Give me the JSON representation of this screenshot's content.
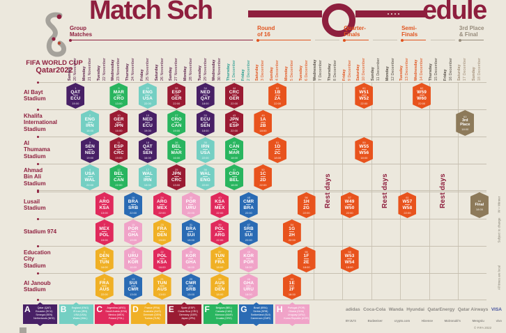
{
  "title": {
    "part1": "Match Sch",
    "part2": "edule"
  },
  "logo": {
    "line1": "FIFA WORLD CUP",
    "line2": "Qatar2022"
  },
  "colors": {
    "bg": "#ece8dd",
    "accent": "#8e1f3e",
    "orange": "#e0531e",
    "tan": "#968b7b",
    "line": "#c9c2b4",
    "group_date": "#5b2149",
    "groupend_date": "#239a8d",
    "rest_date": "#564f47",
    "final_date": "#a3907a",
    "groups": {
      "A": "#482066",
      "B": "#74cfc3",
      "C": "#e02a5c",
      "D": "#f0b025",
      "E": "#9a1b33",
      "F": "#29b55f",
      "G": "#2a6bb4",
      "H": "#f0a3c8",
      "KO": "#e8531d",
      "FINAL": "#8d7a5a"
    }
  },
  "phases": [
    {
      "label": "Group\nMatches",
      "c0": 0,
      "c1": 12,
      "color": "#8e1f3e"
    },
    {
      "label": "Round\nof 16",
      "c0": 13,
      "c1": 16,
      "color": "#e0531e"
    },
    {
      "label": "Quarter-\nFinals",
      "c0": 19,
      "c1": 20,
      "color": "#e0531e"
    },
    {
      "label": "Semi-\nFinals",
      "c0": 23,
      "c1": 24,
      "color": "#e0531e"
    },
    {
      "label": "3rd Place\n& Final",
      "c0": 27,
      "c1": 28,
      "color": "#968b7b"
    }
  ],
  "rest_label": "Rest days",
  "rest_zones": [
    {
      "c0": 17,
      "c1": 18
    },
    {
      "c0": 21,
      "c1": 22
    },
    {
      "c0": 25,
      "c1": 26
    }
  ],
  "columns": [
    {
      "day": "Sunday",
      "date": "20 November",
      "type": "group"
    },
    {
      "day": "Monday",
      "date": "21 November",
      "type": "group"
    },
    {
      "day": "Tuesday",
      "date": "22 November",
      "type": "group"
    },
    {
      "day": "Wednesday",
      "date": "23 November",
      "type": "group"
    },
    {
      "day": "Thursday",
      "date": "24 November",
      "type": "group"
    },
    {
      "day": "Friday",
      "date": "25 November",
      "type": "group"
    },
    {
      "day": "Saturday",
      "date": "26 November",
      "type": "group"
    },
    {
      "day": "Sunday",
      "date": "27 November",
      "type": "group"
    },
    {
      "day": "Monday",
      "date": "28 November",
      "type": "group"
    },
    {
      "day": "Tuesday",
      "date": "29 November",
      "type": "group"
    },
    {
      "day": "Wednesday",
      "date": "30 November",
      "type": "group"
    },
    {
      "day": "Thursday",
      "date": "1 December",
      "type": "groupend"
    },
    {
      "day": "Friday",
      "date": "2 December",
      "type": "groupend"
    },
    {
      "day": "Saturday",
      "date": "3 December",
      "type": "ko"
    },
    {
      "day": "Sunday",
      "date": "4 December",
      "type": "ko"
    },
    {
      "day": "Monday",
      "date": "5 December",
      "type": "ko"
    },
    {
      "day": "Tuesday",
      "date": "6 December",
      "type": "ko"
    },
    {
      "day": "Wednesday",
      "date": "7 December",
      "type": "rest"
    },
    {
      "day": "Thursday",
      "date": "8 December",
      "type": "rest"
    },
    {
      "day": "Friday",
      "date": "9 December",
      "type": "ko"
    },
    {
      "day": "Saturday",
      "date": "10 December",
      "type": "ko"
    },
    {
      "day": "Sunday",
      "date": "11 December",
      "type": "rest"
    },
    {
      "day": "Monday",
      "date": "12 December",
      "type": "rest"
    },
    {
      "day": "Tuesday",
      "date": "13 December",
      "type": "ko"
    },
    {
      "day": "Wednesday",
      "date": "14 December",
      "type": "ko"
    },
    {
      "day": "Thursday",
      "date": "15 December",
      "type": "rest"
    },
    {
      "day": "Friday",
      "date": "16 December",
      "type": "rest"
    },
    {
      "day": "Saturday",
      "date": "17 December",
      "type": "final"
    },
    {
      "day": "Sunday",
      "date": "18 December",
      "type": "final"
    }
  ],
  "stadiums": [
    {
      "name": "Al Bayt\nStadium",
      "matches": [
        {
          "c": 0,
          "n": "1",
          "a": "QAT",
          "b": "ECU",
          "g": "A",
          "t": "19:00"
        },
        {
          "c": 3,
          "n": "9",
          "a": "MAR",
          "b": "CRO",
          "g": "F",
          "t": "13:00"
        },
        {
          "c": 5,
          "n": "20",
          "a": "ENG",
          "b": "USA",
          "g": "B",
          "t": "22:00"
        },
        {
          "c": 7,
          "n": "28",
          "a": "ESP",
          "b": "GER",
          "g": "E",
          "t": "22:00"
        },
        {
          "c": 9,
          "n": "34",
          "a": "NED",
          "b": "QAT",
          "g": "A",
          "t": "18:00"
        },
        {
          "c": 11,
          "n": "44",
          "a": "CRC",
          "b": "GER",
          "g": "E",
          "t": "22:00"
        },
        {
          "c": 14,
          "n": "52",
          "a": "1B",
          "b": "2A",
          "g": "KO",
          "t": "22:00"
        },
        {
          "c": 20,
          "n": "60",
          "a": "W51",
          "b": "W52",
          "g": "KO",
          "t": "22:00"
        },
        {
          "c": 24,
          "n": "62",
          "a": "W59",
          "b": "W60",
          "g": "KO",
          "t": "22:00"
        }
      ]
    },
    {
      "name": "Khalifa\nInternational\nStadium",
      "matches": [
        {
          "c": 1,
          "n": "2",
          "a": "ENG",
          "b": "IRN",
          "g": "B",
          "t": "16:00"
        },
        {
          "c": 3,
          "n": "10",
          "a": "GER",
          "b": "JPN",
          "g": "E",
          "t": "16:00"
        },
        {
          "c": 5,
          "n": "19",
          "a": "NED",
          "b": "ECU",
          "g": "A",
          "t": "19:00"
        },
        {
          "c": 7,
          "n": "27",
          "a": "CRO",
          "b": "CAN",
          "g": "F",
          "t": "19:00"
        },
        {
          "c": 9,
          "n": "33",
          "a": "ECU",
          "b": "SEN",
          "g": "A",
          "t": "18:00"
        },
        {
          "c": 11,
          "n": "43",
          "a": "JPN",
          "b": "ESP",
          "g": "E",
          "t": "22:00"
        },
        {
          "c": 13,
          "n": "49",
          "a": "1A",
          "b": "2B",
          "g": "KO",
          "t": "18:00"
        },
        {
          "c": 27,
          "n": "63",
          "lines": "3rd\nPlace",
          "g": "FINAL",
          "t": "18:00"
        }
      ]
    },
    {
      "name": "Al\nThumama\nStadium",
      "matches": [
        {
          "c": 1,
          "n": "3",
          "a": "SEN",
          "b": "NED",
          "g": "A",
          "t": "19:00"
        },
        {
          "c": 3,
          "n": "11",
          "a": "ESP",
          "b": "CRC",
          "g": "E",
          "t": "19:00"
        },
        {
          "c": 5,
          "n": "18",
          "a": "QAT",
          "b": "SEN",
          "g": "A",
          "t": "16:00"
        },
        {
          "c": 7,
          "n": "26",
          "a": "BEL",
          "b": "MAR",
          "g": "F",
          "t": "16:00"
        },
        {
          "c": 9,
          "n": "35",
          "a": "IRN",
          "b": "USA",
          "g": "B",
          "t": "22:00"
        },
        {
          "c": 11,
          "n": "42",
          "a": "CAN",
          "b": "MAR",
          "g": "F",
          "t": "18:00"
        },
        {
          "c": 14,
          "n": "51",
          "a": "1D",
          "b": "2C",
          "g": "KO",
          "t": "18:00"
        },
        {
          "c": 20,
          "n": "59",
          "a": "W55",
          "b": "W56",
          "g": "KO",
          "t": "18:00"
        }
      ]
    },
    {
      "name": "Ahmad\nBin Ali\nStadium",
      "matches": [
        {
          "c": 1,
          "n": "4",
          "a": "USA",
          "b": "WAL",
          "g": "B",
          "t": "22:00"
        },
        {
          "c": 3,
          "n": "12",
          "a": "BEL",
          "b": "CAN",
          "g": "F",
          "t": "22:00"
        },
        {
          "c": 5,
          "n": "17",
          "a": "WAL",
          "b": "IRN",
          "g": "B",
          "t": "13:00"
        },
        {
          "c": 7,
          "n": "25",
          "a": "JPN",
          "b": "CRC",
          "g": "E",
          "t": "13:00"
        },
        {
          "c": 9,
          "n": "36",
          "a": "WAL",
          "b": "ENG",
          "g": "B",
          "t": "22:00"
        },
        {
          "c": 11,
          "n": "41",
          "a": "CRO",
          "b": "BEL",
          "g": "F",
          "t": "18:00"
        },
        {
          "c": 13,
          "n": "50",
          "a": "1C",
          "b": "2D",
          "g": "KO",
          "t": "22:00"
        }
      ]
    },
    {
      "name": "Lusail\nStadium",
      "matches": [
        {
          "c": 2,
          "n": "5",
          "a": "ARG",
          "b": "KSA",
          "g": "C",
          "t": "13:00"
        },
        {
          "c": 4,
          "n": "16",
          "a": "BRA",
          "b": "SRB",
          "g": "G",
          "t": "22:00"
        },
        {
          "c": 6,
          "n": "24",
          "a": "ARG",
          "b": "MEX",
          "g": "C",
          "t": "22:00"
        },
        {
          "c": 8,
          "n": "32",
          "a": "POR",
          "b": "URU",
          "g": "H",
          "t": "22:00"
        },
        {
          "c": 10,
          "n": "40",
          "a": "KSA",
          "b": "MEX",
          "g": "C",
          "t": "22:00"
        },
        {
          "c": 12,
          "n": "48",
          "a": "CMR",
          "b": "BRA",
          "g": "G",
          "t": "22:00"
        },
        {
          "c": 16,
          "n": "56",
          "a": "1H",
          "b": "2G",
          "g": "KO",
          "t": "22:00"
        },
        {
          "c": 19,
          "n": "57",
          "a": "W49",
          "b": "W50",
          "g": "KO",
          "t": "22:00"
        },
        {
          "c": 23,
          "n": "61",
          "a": "W57",
          "b": "W58",
          "g": "KO",
          "t": "22:00"
        },
        {
          "c": 28,
          "n": "64",
          "lines": "Final",
          "g": "FINAL",
          "t": "18:00"
        }
      ]
    },
    {
      "name": "Stadium 974",
      "matches": [
        {
          "c": 2,
          "n": "7",
          "a": "MEX",
          "b": "POL",
          "g": "C",
          "t": "19:00"
        },
        {
          "c": 4,
          "n": "15",
          "a": "POR",
          "b": "GHA",
          "g": "H",
          "t": "19:00"
        },
        {
          "c": 6,
          "n": "23",
          "a": "FRA",
          "b": "DEN",
          "g": "D",
          "t": "19:00"
        },
        {
          "c": 8,
          "n": "31",
          "a": "BRA",
          "b": "SUI",
          "g": "G",
          "t": "19:00"
        },
        {
          "c": 10,
          "n": "39",
          "a": "POL",
          "b": "ARG",
          "g": "C",
          "t": "22:00"
        },
        {
          "c": 12,
          "n": "47",
          "a": "SRB",
          "b": "SUI",
          "g": "G",
          "t": "22:00"
        },
        {
          "c": 15,
          "n": "54",
          "a": "1G",
          "b": "2H",
          "g": "KO",
          "t": "22:00"
        }
      ]
    },
    {
      "name": "Education\nCity\nStadium",
      "matches": [
        {
          "c": 2,
          "n": "6",
          "a": "DEN",
          "b": "TUN",
          "g": "D",
          "t": "16:00"
        },
        {
          "c": 4,
          "n": "14",
          "a": "URU",
          "b": "KOR",
          "g": "H",
          "t": "16:00"
        },
        {
          "c": 6,
          "n": "22",
          "a": "POL",
          "b": "KSA",
          "g": "C",
          "t": "16:00"
        },
        {
          "c": 8,
          "n": "30",
          "a": "KOR",
          "b": "GHA",
          "g": "H",
          "t": "16:00"
        },
        {
          "c": 10,
          "n": "37",
          "a": "TUN",
          "b": "FRA",
          "g": "D",
          "t": "18:00"
        },
        {
          "c": 12,
          "n": "45",
          "a": "KOR",
          "b": "POR",
          "g": "H",
          "t": "18:00"
        },
        {
          "c": 16,
          "n": "55",
          "a": "1F",
          "b": "2E",
          "g": "KO",
          "t": "18:00"
        },
        {
          "c": 19,
          "n": "58",
          "a": "W53",
          "b": "W54",
          "g": "KO",
          "t": "18:00"
        }
      ]
    },
    {
      "name": "Al Janoub\nStadium",
      "matches": [
        {
          "c": 2,
          "n": "8",
          "a": "FRA",
          "b": "AUS",
          "g": "D",
          "t": "22:00"
        },
        {
          "c": 4,
          "n": "13",
          "a": "SUI",
          "b": "CMR",
          "g": "G",
          "t": "13:00"
        },
        {
          "c": 6,
          "n": "21",
          "a": "TUN",
          "b": "AUS",
          "g": "D",
          "t": "13:00"
        },
        {
          "c": 8,
          "n": "29",
          "a": "CMR",
          "b": "SRB",
          "g": "G",
          "t": "13:00"
        },
        {
          "c": 10,
          "n": "38",
          "a": "AUS",
          "b": "DEN",
          "g": "D",
          "t": "18:00"
        },
        {
          "c": 12,
          "n": "46",
          "a": "GHA",
          "b": "URU",
          "g": "H",
          "t": "18:00"
        },
        {
          "c": 15,
          "n": "53",
          "a": "1E",
          "b": "2F",
          "g": "KO",
          "t": "18:00"
        }
      ]
    }
  ],
  "legend": [
    {
      "letter": "A",
      "teams": "Qatar (QAT)\nEcuador (ECU)\nSenegal (SEN)\nNetherlands (NED)"
    },
    {
      "letter": "B",
      "teams": "England (ENG)\nIR Iran (IRN)\nUSA (USA)\nWales (WAL)"
    },
    {
      "letter": "C",
      "teams": "Argentina (ARG)\nSaudi Arabia (KSA)\nMexico (MEX)\nPoland (POL)"
    },
    {
      "letter": "D",
      "teams": "France (FRA)\nAustralia (AUS)\nDenmark (DEN)\nTunisia (TUN)"
    },
    {
      "letter": "E",
      "teams": "Spain (ESP)\nCosta Rica (CRC)\nGermany (GER)\nJapan (JPN)"
    },
    {
      "letter": "F",
      "teams": "Belgium (BEL)\nCanada (CAN)\nMorocco (MAR)\nCroatia (CRO)"
    },
    {
      "letter": "G",
      "teams": "Brazil (BRA)\nSerbia (SRB)\nSwitzerland (SUI)\nCameroon (CMR)"
    },
    {
      "letter": "H",
      "teams": "Portugal (POR)\nGhana (GHA)\nUruguay (URU)\nKorea Republic (KOR)"
    }
  ],
  "sponsors": {
    "row1": [
      "adidas",
      "Coca-Cola",
      "Wanda",
      "Hyundai",
      "QatarEnergy",
      "Qatar Airways",
      "VISA"
    ],
    "row2": [
      "BYJU'S",
      "Budweiser",
      "crypto.com",
      "Hisense",
      "McDonald's",
      "Mengniu",
      "vivo"
    ]
  },
  "footnotes": [
    "W = Winner",
    "Subject to change",
    "All times are local"
  ],
  "copyright": "© FIFA 2022"
}
